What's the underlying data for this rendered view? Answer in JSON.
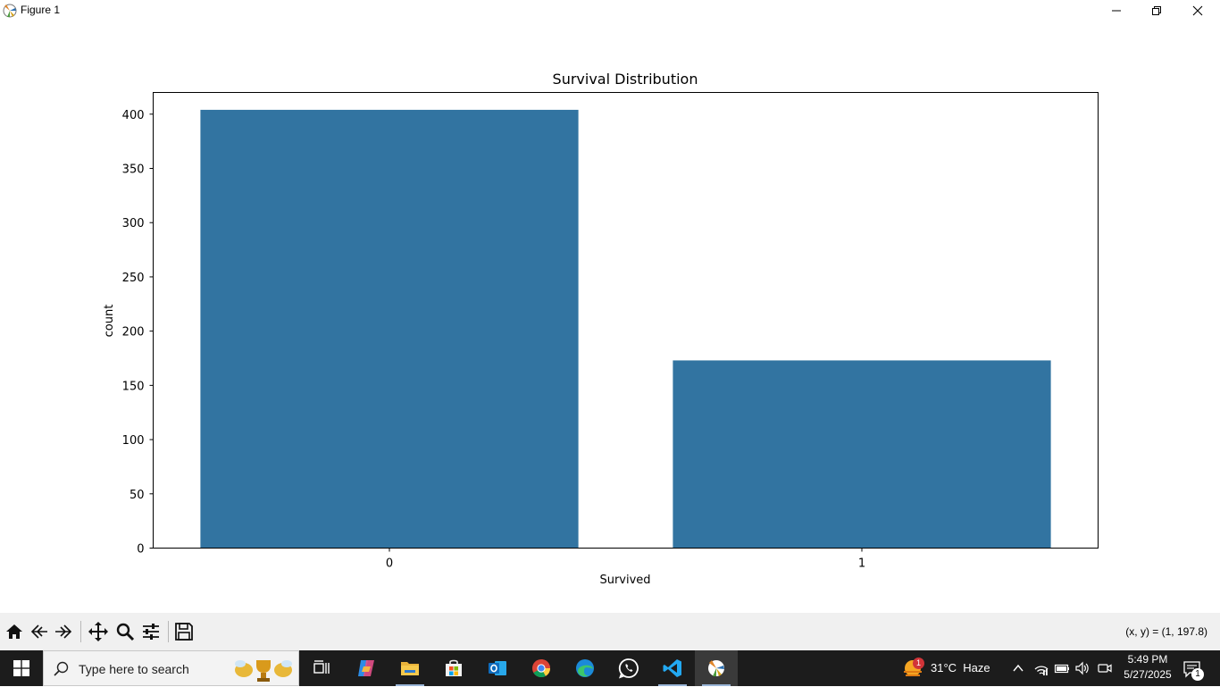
{
  "window": {
    "title": "Figure 1",
    "controls": [
      "minimize-icon",
      "maximize-icon",
      "close-icon"
    ]
  },
  "chart_data": {
    "type": "bar",
    "title": "Survival Distribution",
    "xlabel": "Survived",
    "ylabel": "count",
    "categories": [
      "0",
      "1"
    ],
    "values": [
      404,
      173
    ],
    "ylim": [
      0,
      420
    ],
    "yticks": [
      0,
      50,
      100,
      150,
      200,
      250,
      300,
      350,
      400
    ],
    "bar_color": "#3274a1",
    "grid": false
  },
  "toolbar": {
    "tools": [
      "home-icon",
      "back-icon",
      "forward-icon",
      "pan-icon",
      "zoom-icon",
      "configure-subplots-icon",
      "save-icon"
    ],
    "coords": "(x, y) = (1, 197.8)"
  },
  "taskbar": {
    "search_placeholder": "Type here to search",
    "apps": [
      "task-view-icon",
      "copilot-icon",
      "file-explorer-icon",
      "microsoft-store-icon",
      "outlook-icon",
      "chrome-icon",
      "edge-icon",
      "whatsapp-icon",
      "vscode-icon",
      "python-figure-icon"
    ],
    "weather": {
      "temp": "31°C",
      "condition": "Haze",
      "badge": "1"
    },
    "tray": [
      "chevron-up-icon",
      "wifi-icon",
      "battery-icon",
      "volume-icon",
      "meet-now-icon"
    ],
    "time": "5:49 PM",
    "date": "5/27/2025",
    "notification_count": "1"
  }
}
